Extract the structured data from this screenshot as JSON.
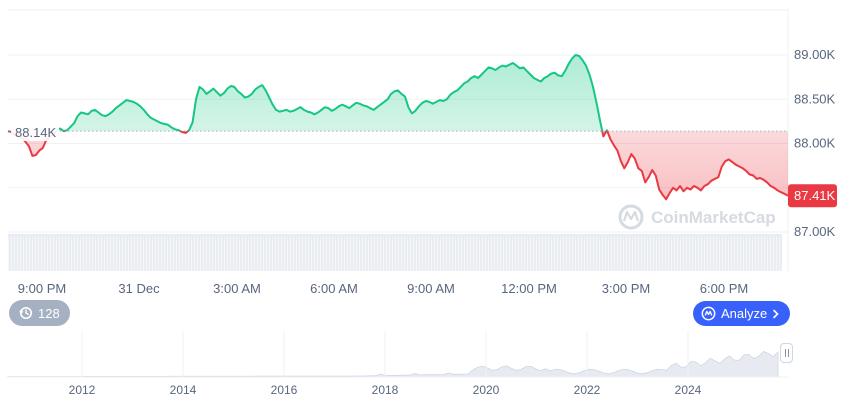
{
  "chart_data": {
    "type": "area",
    "y_axis": {
      "ticks": [
        "89.00K",
        "88.50K",
        "88.00K",
        "87.00K"
      ],
      "tick_values": [
        89000,
        88500,
        88000,
        87000
      ],
      "range": [
        86500,
        89250
      ],
      "position": "right"
    },
    "x_axis": {
      "ticks": [
        "9:00 PM",
        "31 Dec",
        "3:00 AM",
        "6:00 AM",
        "9:00 AM",
        "12:00 PM",
        "3:00 PM",
        "6:00 PM"
      ]
    },
    "open_label": "88.14K",
    "open_value": 88140,
    "current_label": "87.41K",
    "current_value": 87410,
    "colors": {
      "up": "#16c784",
      "down": "#ea3943",
      "current_badge": "#ea3943"
    },
    "series": [
      {
        "values": [
          88140,
          88130,
          88090,
          88100,
          88060,
          88020,
          87970,
          87860,
          87870,
          87920,
          87950,
          88040,
          88080,
          88100,
          88150,
          88170,
          88140,
          88150,
          88190,
          88230,
          88310,
          88350,
          88340,
          88330,
          88370,
          88380,
          88350,
          88320,
          88310,
          88330,
          88360,
          88400,
          88430,
          88460,
          88490,
          88480,
          88470,
          88450,
          88420,
          88380,
          88330,
          88290,
          88270,
          88250,
          88230,
          88220,
          88210,
          88180,
          88160,
          88150,
          88130,
          88120,
          88150,
          88240,
          88500,
          88640,
          88610,
          88560,
          88590,
          88620,
          88580,
          88540,
          88570,
          88620,
          88650,
          88640,
          88590,
          88560,
          88520,
          88530,
          88560,
          88610,
          88640,
          88660,
          88600,
          88520,
          88440,
          88380,
          88360,
          88370,
          88380,
          88360,
          88370,
          88390,
          88410,
          88380,
          88360,
          88350,
          88330,
          88350,
          88380,
          88410,
          88400,
          88370,
          88390,
          88420,
          88440,
          88420,
          88400,
          88430,
          88460,
          88450,
          88430,
          88420,
          88400,
          88380,
          88410,
          88440,
          88470,
          88500,
          88560,
          88590,
          88600,
          88560,
          88530,
          88410,
          88340,
          88370,
          88420,
          88460,
          88480,
          88470,
          88450,
          88470,
          88490,
          88480,
          88500,
          88550,
          88580,
          88600,
          88640,
          88680,
          88700,
          88740,
          88760,
          88740,
          88780,
          88820,
          88860,
          88850,
          88830,
          88860,
          88880,
          88870,
          88890,
          88910,
          88880,
          88850,
          88860,
          88820,
          88780,
          88740,
          88720,
          88700,
          88740,
          88760,
          88790,
          88800,
          88770,
          88760,
          88820,
          88900,
          88960,
          89000,
          88990,
          88940,
          88880,
          88780,
          88640,
          88460,
          88260,
          88080,
          88150,
          88050,
          87980,
          87920,
          87800,
          87720,
          87790,
          87880,
          87830,
          87720,
          87690,
          87560,
          87620,
          87700,
          87640,
          87480,
          87420,
          87370,
          87440,
          87500,
          87470,
          87520,
          87460,
          87500,
          87480,
          87520,
          87500,
          87470,
          87520,
          87540,
          87580,
          87600,
          87620,
          87740,
          87800,
          87820,
          87790,
          87760,
          87740,
          87720,
          87690,
          87650,
          87640,
          87600,
          87610,
          87590,
          87560,
          87520,
          87500,
          87470,
          87450,
          87430,
          87410
        ]
      }
    ],
    "volume_note": "",
    "navigator": {
      "year_ticks": [
        "2012",
        "2014",
        "2016",
        "2018",
        "2020",
        "2022",
        "2024"
      ]
    },
    "watermark": "CoinMarketCap",
    "title": "",
    "xlabel": "",
    "ylabel": "",
    "grid": true,
    "legend": "none"
  },
  "controls": {
    "history_count": "128",
    "history_icon": "history-icon",
    "analyze_label": "Analyze",
    "analyze_icon": "analyze-icon",
    "analyze_color": "#3861fb"
  }
}
